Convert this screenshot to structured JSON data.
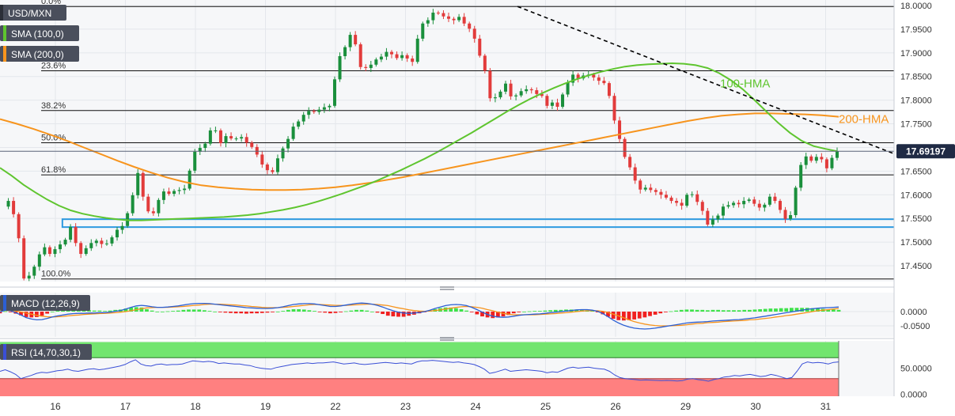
{
  "symbol": "USD/MXN",
  "legend": {
    "sma100": "SMA (100,0)",
    "sma200": "SMA (200,0)",
    "macd": "MACD (12,26,9)",
    "rsi": "RSI (14,70,30,1)"
  },
  "colors": {
    "up": "#1a8f3c",
    "down": "#e23b3b",
    "hma100": "#5fc52f",
    "hma200": "#f7941d",
    "macd_line": "#2c5fd3",
    "signal_line": "#f7941d",
    "support_box": "#2d9ae0",
    "rsi_over": "#72e56f",
    "rsi_under": "#ff8080",
    "rsi_line": "#3a4fd6",
    "price_tag": "#1f2a44"
  },
  "chart_data": {
    "type": "candlestick",
    "x_ticks": [
      "16",
      "17",
      "18",
      "19",
      "22",
      "23",
      "24",
      "25",
      "26",
      "29",
      "30",
      "31"
    ],
    "price_axis": {
      "ylim": [
        17.415,
        18.0
      ],
      "ticks": [
        "18.0000",
        "17.9500",
        "17.9000",
        "17.8500",
        "17.8000",
        "17.7500",
        "17.7000",
        "17.6500",
        "17.6000",
        "17.5500",
        "17.5000",
        "17.4500"
      ]
    },
    "last_price": "17.69197",
    "fibonacci": [
      {
        "label": "0.0%",
        "value": 17.998
      },
      {
        "label": "23.6%",
        "value": 17.862
      },
      {
        "label": "38.2%",
        "value": 17.778
      },
      {
        "label": "50.0%",
        "value": 17.71
      },
      {
        "label": "61.8%",
        "value": 17.642
      },
      {
        "label": "100.0%",
        "value": 17.422
      }
    ],
    "annotations": [
      {
        "text": "100-HMA",
        "x": 25.9,
        "y": 17.827
      },
      {
        "text": "200-HMA",
        "x": 29.2,
        "y": 17.752
      }
    ],
    "support_zone": {
      "x_start": 16.1,
      "x_end": 36.25,
      "y_low": 17.535,
      "y_high": 17.545
    },
    "trend_line": {
      "x_start": 23.6,
      "y_start": 17.998,
      "x_end": 36.3,
      "y_end": 17.668
    },
    "close": [
      17.575,
      17.587,
      17.559,
      17.508,
      17.423,
      17.429,
      17.448,
      17.474,
      17.489,
      17.475,
      17.485,
      17.495,
      17.505,
      17.532,
      17.498,
      17.475,
      17.487,
      17.498,
      17.503,
      17.496,
      17.497,
      17.51,
      17.526,
      17.534,
      17.561,
      17.599,
      17.646,
      17.596,
      17.565,
      17.561,
      17.589,
      17.607,
      17.602,
      17.608,
      17.61,
      17.613,
      17.651,
      17.691,
      17.699,
      17.708,
      17.736,
      17.736,
      17.709,
      17.724,
      17.719,
      17.719,
      17.722,
      17.71,
      17.701,
      17.685,
      17.664,
      17.652,
      17.648,
      17.677,
      17.698,
      17.718,
      17.744,
      17.755,
      17.769,
      17.777,
      17.775,
      17.78,
      17.785,
      17.788,
      17.844,
      17.893,
      17.912,
      17.938,
      17.918,
      17.87,
      17.868,
      17.875,
      17.886,
      17.892,
      17.902,
      17.897,
      17.889,
      17.895,
      17.888,
      17.881,
      17.93,
      17.962,
      17.969,
      17.985,
      17.984,
      17.977,
      17.972,
      17.969,
      17.976,
      17.962,
      17.951,
      17.93,
      17.894,
      17.862,
      17.804,
      17.806,
      17.818,
      17.835,
      17.808,
      17.81,
      17.819,
      17.823,
      17.821,
      17.813,
      17.809,
      17.788,
      17.795,
      17.786,
      17.812,
      17.837,
      17.854,
      17.846,
      17.852,
      17.854,
      17.848,
      17.841,
      17.836,
      17.809,
      17.757,
      17.718,
      17.68,
      17.658,
      17.63,
      17.611,
      17.615,
      17.61,
      17.606,
      17.6,
      17.594,
      17.587,
      17.583,
      17.577,
      17.6,
      17.601,
      17.585,
      17.566,
      17.537,
      17.548,
      17.556,
      17.575,
      17.578,
      17.583,
      17.58,
      17.587,
      17.59,
      17.581,
      17.573,
      17.579,
      17.596,
      17.587,
      17.568,
      17.549,
      17.557,
      17.615,
      17.663,
      17.681,
      17.672,
      17.68,
      17.675,
      17.656,
      17.678,
      17.692
    ],
    "hma100": [
      17.657,
      17.64,
      17.621,
      17.605,
      17.59,
      17.577,
      17.567,
      17.56,
      17.555,
      17.551,
      17.548,
      17.546,
      17.546,
      17.547,
      17.548,
      17.549,
      17.55,
      17.551,
      17.552,
      17.553,
      17.555,
      17.557,
      17.56,
      17.564,
      17.568,
      17.573,
      17.579,
      17.586,
      17.594,
      17.602,
      17.611,
      17.62,
      17.63,
      17.641,
      17.652,
      17.664,
      17.676,
      17.689,
      17.703,
      17.717,
      17.731,
      17.746,
      17.761,
      17.776,
      17.79,
      17.803,
      17.815,
      17.826,
      17.836,
      17.845,
      17.853,
      17.86,
      17.866,
      17.871,
      17.874,
      17.876,
      17.877,
      17.878,
      17.877,
      17.874,
      17.868,
      17.857,
      17.842,
      17.823,
      17.8,
      17.776,
      17.752,
      17.731,
      17.714,
      17.703,
      17.697,
      17.692
    ],
    "hma200": [
      17.76,
      17.75,
      17.739,
      17.727,
      17.714,
      17.7,
      17.686,
      17.672,
      17.659,
      17.647,
      17.636,
      17.627,
      17.62,
      17.616,
      17.613,
      17.611,
      17.61,
      17.61,
      17.611,
      17.613,
      17.616,
      17.62,
      17.625,
      17.631,
      17.637,
      17.644,
      17.651,
      17.658,
      17.665,
      17.672,
      17.679,
      17.686,
      17.693,
      17.7,
      17.707,
      17.714,
      17.721,
      17.728,
      17.735,
      17.742,
      17.749,
      17.756,
      17.762,
      17.767,
      17.77,
      17.772,
      17.772,
      17.771,
      17.77,
      17.768,
      17.765
    ],
    "macd": {
      "ylim": [
        -0.07,
        0.042
      ],
      "ticks": [
        "0.0000",
        "-0.0500"
      ],
      "macd": [
        -0.001,
        0.005,
        0.003,
        -0.004,
        -0.012,
        -0.021,
        -0.026,
        -0.029,
        -0.028,
        -0.024,
        -0.019,
        -0.015,
        -0.012,
        -0.009,
        -0.007,
        -0.006,
        -0.006,
        -0.005,
        -0.005,
        -0.004,
        -0.004,
        -0.002,
        0.001,
        0.004,
        0.009,
        0.015,
        0.02,
        0.022,
        0.02,
        0.017,
        0.015,
        0.015,
        0.016,
        0.018,
        0.02,
        0.023,
        0.026,
        0.028,
        0.029,
        0.029,
        0.028,
        0.026,
        0.024,
        0.022,
        0.02,
        0.018,
        0.016,
        0.014,
        0.013,
        0.012,
        0.011,
        0.011,
        0.012,
        0.014,
        0.017,
        0.021,
        0.025,
        0.027,
        0.028,
        0.028,
        0.027,
        0.024,
        0.021,
        0.018,
        0.018,
        0.02,
        0.023,
        0.026,
        0.029,
        0.03,
        0.029,
        0.026,
        0.022,
        0.016,
        0.009,
        0.003,
        -0.002,
        -0.005,
        -0.006,
        -0.005,
        -0.003,
        0.0,
        0.005,
        0.011,
        0.016,
        0.021,
        0.024,
        0.025,
        0.024,
        0.021,
        0.015,
        0.007,
        -0.002,
        -0.01,
        -0.016,
        -0.019,
        -0.02,
        -0.019,
        -0.016,
        -0.013,
        -0.011,
        -0.01,
        -0.009,
        -0.008,
        -0.006,
        -0.004,
        -0.002,
        0.0,
        0.002,
        0.004,
        0.006,
        0.007,
        0.007,
        0.005,
        0.001,
        -0.007,
        -0.018,
        -0.03,
        -0.04,
        -0.048,
        -0.054,
        -0.058,
        -0.06,
        -0.061,
        -0.06,
        -0.058,
        -0.055,
        -0.052,
        -0.049,
        -0.046,
        -0.043,
        -0.04,
        -0.038,
        -0.037,
        -0.036,
        -0.035,
        -0.033,
        -0.032,
        -0.031,
        -0.03,
        -0.029,
        -0.028,
        -0.026,
        -0.024,
        -0.022,
        -0.019,
        -0.016,
        -0.013,
        -0.01,
        -0.007,
        -0.004,
        -0.001,
        0.002,
        0.005,
        0.008,
        0.01,
        0.012,
        0.013,
        0.014,
        0.015,
        0.016
      ],
      "signal": [
        0.004,
        0.004,
        0.004,
        0.002,
        -0.001,
        -0.005,
        -0.009,
        -0.013,
        -0.016,
        -0.018,
        -0.019,
        -0.018,
        -0.017,
        -0.015,
        -0.013,
        -0.012,
        -0.01,
        -0.009,
        -0.008,
        -0.007,
        -0.006,
        -0.005,
        -0.004,
        -0.002,
        0.0,
        0.003,
        0.007,
        0.01,
        0.013,
        0.014,
        0.015,
        0.015,
        0.015,
        0.016,
        0.017,
        0.018,
        0.02,
        0.022,
        0.023,
        0.025,
        0.026,
        0.026,
        0.026,
        0.025,
        0.024,
        0.023,
        0.021,
        0.02,
        0.018,
        0.017,
        0.015,
        0.014,
        0.014,
        0.014,
        0.015,
        0.016,
        0.018,
        0.02,
        0.022,
        0.024,
        0.025,
        0.025,
        0.024,
        0.023,
        0.022,
        0.022,
        0.022,
        0.023,
        0.024,
        0.025,
        0.026,
        0.026,
        0.025,
        0.023,
        0.021,
        0.017,
        0.013,
        0.01,
        0.006,
        0.004,
        0.002,
        0.001,
        0.002,
        0.004,
        0.006,
        0.009,
        0.012,
        0.015,
        0.017,
        0.018,
        0.017,
        0.015,
        0.012,
        0.007,
        0.003,
        -0.002,
        -0.006,
        -0.009,
        -0.011,
        -0.011,
        -0.011,
        -0.011,
        -0.011,
        -0.01,
        -0.009,
        -0.008,
        -0.007,
        -0.005,
        -0.004,
        -0.002,
        0.0,
        0.002,
        0.003,
        0.003,
        0.003,
        0.001,
        -0.003,
        -0.009,
        -0.015,
        -0.022,
        -0.029,
        -0.035,
        -0.04,
        -0.044,
        -0.047,
        -0.049,
        -0.05,
        -0.05,
        -0.05,
        -0.049,
        -0.048,
        -0.046,
        -0.044,
        -0.042,
        -0.041,
        -0.039,
        -0.038,
        -0.037,
        -0.035,
        -0.034,
        -0.033,
        -0.032,
        -0.031,
        -0.029,
        -0.028,
        -0.026,
        -0.024,
        -0.022,
        -0.019,
        -0.017,
        -0.014,
        -0.012,
        -0.009,
        -0.006,
        -0.003,
        0.0,
        0.003,
        0.005,
        0.007,
        0.009,
        0.011
      ]
    },
    "rsi": {
      "ylim": [
        -4,
        86
      ],
      "overbought": 70,
      "oversold": 30,
      "ticks": [
        "50.0000",
        "0.0000"
      ],
      "values": [
        44,
        47,
        43,
        38,
        30,
        33,
        36,
        40,
        42,
        41,
        43,
        45,
        46,
        48,
        45,
        44,
        46,
        48,
        49,
        47,
        48,
        50,
        52,
        54,
        57,
        62,
        66,
        58,
        55,
        54,
        57,
        58,
        56,
        57,
        57,
        58,
        61,
        64,
        63,
        62,
        63,
        62,
        59,
        60,
        59,
        58,
        58,
        56,
        55,
        52,
        50,
        49,
        48,
        51,
        53,
        55,
        57,
        58,
        59,
        60,
        59,
        60,
        60,
        61,
        62,
        60,
        58,
        59,
        60,
        58,
        57,
        58,
        59,
        60,
        61,
        60,
        59,
        60,
        59,
        58,
        62,
        64,
        64,
        65,
        64,
        63,
        62,
        61,
        62,
        60,
        59,
        57,
        53,
        48,
        40,
        42,
        45,
        48,
        44,
        45,
        46,
        47,
        46,
        45,
        44,
        41,
        43,
        42,
        46,
        50,
        52,
        50,
        51,
        52,
        50,
        49,
        48,
        44,
        37,
        32,
        30,
        29,
        28,
        27,
        27.5,
        27,
        26.5,
        26,
        26.5,
        26,
        25.5,
        26,
        29,
        30,
        28,
        27,
        25,
        28,
        30,
        33,
        34,
        36,
        35,
        37,
        38,
        36,
        34,
        35,
        38,
        36,
        33,
        30,
        32,
        44,
        58,
        62,
        60,
        61,
        60,
        58,
        61,
        62
      ]
    }
  }
}
